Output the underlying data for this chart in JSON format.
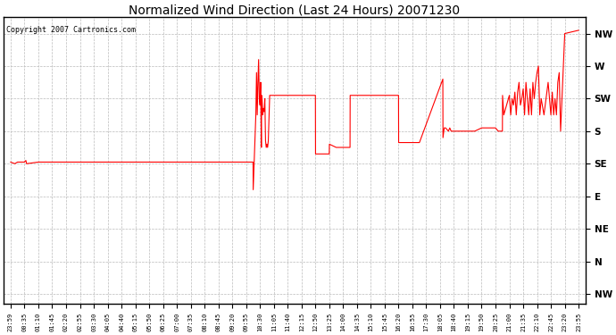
{
  "title": "Normalized Wind Direction (Last 24 Hours) 20071230",
  "copyright": "Copyright 2007 Cartronics.com",
  "line_color": "#ff0000",
  "bg_color": "#ffffff",
  "grid_color": "#bbbbbb",
  "ytick_labels": [
    "NW",
    "N",
    "NE",
    "E",
    "SE",
    "S",
    "SW",
    "W",
    "NW"
  ],
  "ytick_values": [
    0,
    1,
    2,
    3,
    4,
    5,
    6,
    7,
    8
  ],
  "xtick_labels": [
    "23:59",
    "00:35",
    "01:10",
    "01:45",
    "02:20",
    "02:55",
    "03:30",
    "04:05",
    "04:40",
    "05:15",
    "05:50",
    "06:25",
    "07:00",
    "07:35",
    "08:10",
    "08:45",
    "09:20",
    "09:55",
    "10:30",
    "11:05",
    "11:40",
    "12:15",
    "12:50",
    "13:25",
    "14:00",
    "14:35",
    "15:10",
    "15:45",
    "16:20",
    "16:55",
    "17:30",
    "18:05",
    "18:40",
    "19:15",
    "19:50",
    "20:25",
    "21:00",
    "21:35",
    "22:10",
    "22:45",
    "23:20",
    "23:55"
  ],
  "wind_data": [
    [
      0,
      4.05
    ],
    [
      0.3,
      4.0
    ],
    [
      0.5,
      4.05
    ],
    [
      1.0,
      4.05
    ],
    [
      1.1,
      4.1
    ],
    [
      1.15,
      4.0
    ],
    [
      2.0,
      4.05
    ],
    [
      3.0,
      4.05
    ],
    [
      4.0,
      4.05
    ],
    [
      5.0,
      4.05
    ],
    [
      6.0,
      4.05
    ],
    [
      7.0,
      4.05
    ],
    [
      8.0,
      4.05
    ],
    [
      9.0,
      4.05
    ],
    [
      10.0,
      4.05
    ],
    [
      11.0,
      4.05
    ],
    [
      12.0,
      4.05
    ],
    [
      13.0,
      4.05
    ],
    [
      14.0,
      4.05
    ],
    [
      15.0,
      4.05
    ],
    [
      16.0,
      4.05
    ],
    [
      17.0,
      4.05
    ],
    [
      17.5,
      4.05
    ],
    [
      17.51,
      3.2
    ],
    [
      17.7,
      5.5
    ],
    [
      17.75,
      6.8
    ],
    [
      17.8,
      5.5
    ],
    [
      17.85,
      6.5
    ],
    [
      17.9,
      7.2
    ],
    [
      17.95,
      6.0
    ],
    [
      18.0,
      5.8
    ],
    [
      18.05,
      6.5
    ],
    [
      18.1,
      4.5
    ],
    [
      18.12,
      6.1
    ],
    [
      18.15,
      6.0
    ],
    [
      18.2,
      5.5
    ],
    [
      18.25,
      5.7
    ],
    [
      18.3,
      5.6
    ],
    [
      18.35,
      6.0
    ],
    [
      18.4,
      4.7
    ],
    [
      18.45,
      4.5
    ],
    [
      18.5,
      4.6
    ],
    [
      18.55,
      4.5
    ],
    [
      18.6,
      4.7
    ],
    [
      18.7,
      6.1
    ],
    [
      18.75,
      6.1
    ],
    [
      22.0,
      6.1
    ],
    [
      22.01,
      4.3
    ],
    [
      23.0,
      4.3
    ],
    [
      23.01,
      4.6
    ],
    [
      23.5,
      4.5
    ],
    [
      24.5,
      4.5
    ],
    [
      24.51,
      6.1
    ],
    [
      28.0,
      6.1
    ],
    [
      28.01,
      4.65
    ],
    [
      29.5,
      4.65
    ],
    [
      29.51,
      4.65
    ],
    [
      31.2,
      6.6
    ],
    [
      31.21,
      4.8
    ],
    [
      31.3,
      5.1
    ],
    [
      31.4,
      5.1
    ],
    [
      31.6,
      5.0
    ],
    [
      31.7,
      5.1
    ],
    [
      31.8,
      5.0
    ],
    [
      32.0,
      5.0
    ],
    [
      32.1,
      5.0
    ],
    [
      32.2,
      5.0
    ],
    [
      32.3,
      5.0
    ],
    [
      32.5,
      5.0
    ],
    [
      33.0,
      5.0
    ],
    [
      33.5,
      5.0
    ],
    [
      34.0,
      5.1
    ],
    [
      35.0,
      5.1
    ],
    [
      35.2,
      5.0
    ],
    [
      35.5,
      5.0
    ],
    [
      35.51,
      6.1
    ],
    [
      35.6,
      5.5
    ],
    [
      36.0,
      6.1
    ],
    [
      36.1,
      5.5
    ],
    [
      36.2,
      6.0
    ],
    [
      36.3,
      5.8
    ],
    [
      36.4,
      6.2
    ],
    [
      36.5,
      5.5
    ],
    [
      36.6,
      6.2
    ],
    [
      36.7,
      6.5
    ],
    [
      36.8,
      5.8
    ],
    [
      36.9,
      6.0
    ],
    [
      37.0,
      6.3
    ],
    [
      37.1,
      5.5
    ],
    [
      37.2,
      6.5
    ],
    [
      37.3,
      6.0
    ],
    [
      37.4,
      5.5
    ],
    [
      37.5,
      6.3
    ],
    [
      37.6,
      5.5
    ],
    [
      37.7,
      6.5
    ],
    [
      37.8,
      6.0
    ],
    [
      37.9,
      6.5
    ],
    [
      38.0,
      6.8
    ],
    [
      38.1,
      7.0
    ],
    [
      38.2,
      5.5
    ],
    [
      38.3,
      6.0
    ],
    [
      38.5,
      5.5
    ],
    [
      38.8,
      6.5
    ],
    [
      39.0,
      5.5
    ],
    [
      39.1,
      6.2
    ],
    [
      39.2,
      5.5
    ],
    [
      39.3,
      6.0
    ],
    [
      39.4,
      5.5
    ],
    [
      39.5,
      6.5
    ],
    [
      39.6,
      6.8
    ],
    [
      39.7,
      5.0
    ],
    [
      40.0,
      8.0
    ],
    [
      41.0,
      8.1
    ]
  ]
}
